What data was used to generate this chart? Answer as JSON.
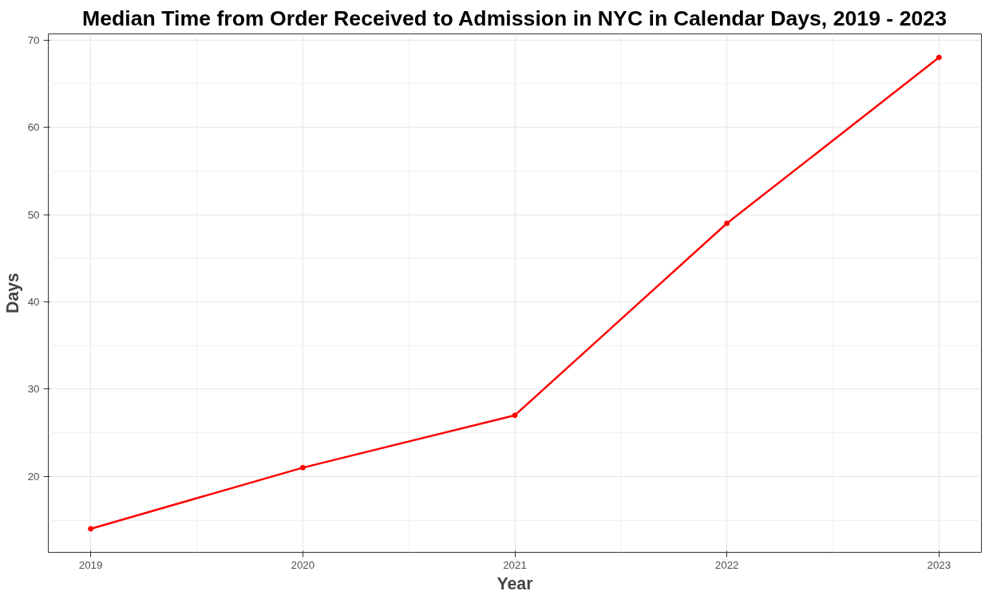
{
  "chart_data": {
    "type": "line",
    "title": "Median Time from Order Received to Admission in NYC in Calendar Days, 2019 - 2023",
    "xlabel": "Year",
    "ylabel": "Days",
    "x": [
      2019,
      2020,
      2021,
      2022,
      2023
    ],
    "series": [
      {
        "color": "#ff0000",
        "values": [
          14,
          21,
          27,
          49,
          68
        ]
      }
    ],
    "xlim": [
      2018.8,
      2023.2
    ],
    "xticks": [
      2019,
      2020,
      2021,
      2022,
      2023
    ],
    "ylim": [
      11.3,
      70.7
    ],
    "yticks": [
      20,
      30,
      40,
      50,
      60,
      70
    ],
    "grid": true,
    "marker": "circle",
    "line_style": "solid"
  }
}
